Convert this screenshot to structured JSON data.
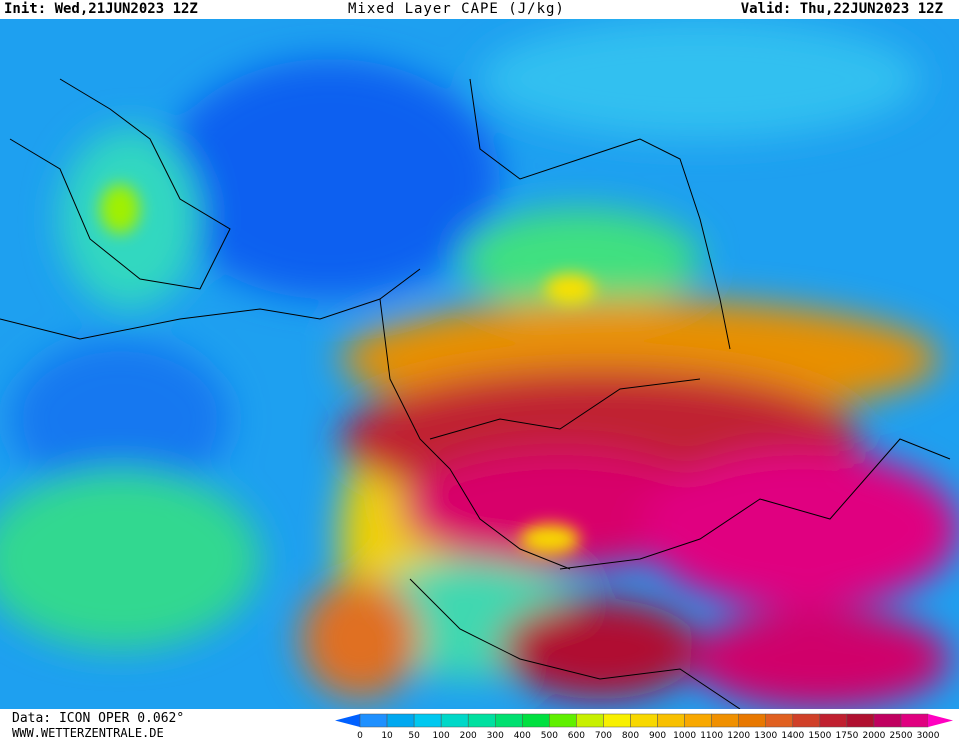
{
  "header": {
    "init": "Init: Wed,21JUN2023 12Z",
    "title": "Mixed Layer CAPE (J/kg)",
    "valid": "Valid: Thu,22JUN2023 12Z"
  },
  "footer": {
    "data": "Data: ICON OPER 0.062°",
    "site": "WWW.WETTERZENTRALE.DE"
  },
  "colorbar": {
    "labels": [
      0,
      10,
      50,
      100,
      200,
      300,
      400,
      500,
      600,
      700,
      800,
      900,
      1000,
      1100,
      1200,
      1300,
      1400,
      1500,
      1750,
      2000,
      2500,
      3000
    ],
    "colors": [
      "#1e90ff",
      "#00a8f0",
      "#00c8f0",
      "#00d8c8",
      "#00e0a0",
      "#00e070",
      "#00e040",
      "#60f000",
      "#c8f000",
      "#f8f000",
      "#f8d800",
      "#f8c000",
      "#f8a800",
      "#f09000",
      "#e87800",
      "#e06020",
      "#d04028",
      "#c02030",
      "#b01030",
      "#c00060",
      "#e00080"
    ],
    "under_color": "#0060ff",
    "over_color": "#ff00c0"
  }
}
